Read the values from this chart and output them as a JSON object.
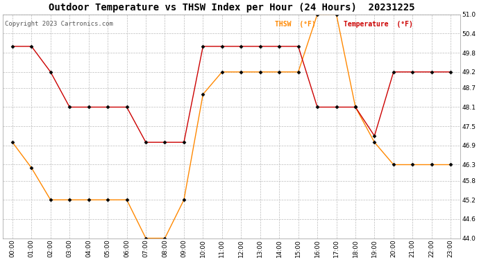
{
  "title": "Outdoor Temperature vs THSW Index per Hour (24 Hours)  20231225",
  "copyright": "Copyright 2023 Cartronics.com",
  "x_labels": [
    "00:00",
    "01:00",
    "02:00",
    "03:00",
    "04:00",
    "05:00",
    "06:00",
    "07:00",
    "08:00",
    "09:00",
    "10:00",
    "11:00",
    "12:00",
    "13:00",
    "14:00",
    "15:00",
    "16:00",
    "17:00",
    "18:00",
    "19:00",
    "20:00",
    "21:00",
    "22:00",
    "23:00"
  ],
  "temperature": [
    50.0,
    50.0,
    49.2,
    48.1,
    48.1,
    48.1,
    48.1,
    47.0,
    47.0,
    47.0,
    50.0,
    50.0,
    50.0,
    50.0,
    50.0,
    50.0,
    48.1,
    48.1,
    48.1,
    47.2,
    49.2,
    49.2,
    49.2,
    49.2
  ],
  "thsw": [
    47.0,
    46.2,
    45.2,
    45.2,
    45.2,
    45.2,
    45.2,
    44.0,
    44.0,
    45.2,
    48.5,
    49.2,
    49.2,
    49.2,
    49.2,
    49.2,
    51.0,
    51.0,
    48.1,
    47.0,
    46.3,
    46.3,
    46.3,
    46.3
  ],
  "temp_color": "#cc0000",
  "thsw_color": "#ff8800",
  "ylim_min": 44.0,
  "ylim_max": 51.0,
  "yticks": [
    44.0,
    44.6,
    45.2,
    45.8,
    46.3,
    46.9,
    47.5,
    48.1,
    48.7,
    49.2,
    49.8,
    50.4,
    51.0
  ],
  "background_color": "#ffffff",
  "grid_color": "#bbbbbb",
  "marker": "D",
  "marker_size": 2.5,
  "marker_color": "#000000",
  "legend_thsw": "THSW  (°F)",
  "legend_temp": "Temperature  (°F)",
  "title_fontsize": 10,
  "label_fontsize": 7,
  "tick_fontsize": 6.5,
  "copyright_fontsize": 6.5,
  "line_width": 1.0
}
